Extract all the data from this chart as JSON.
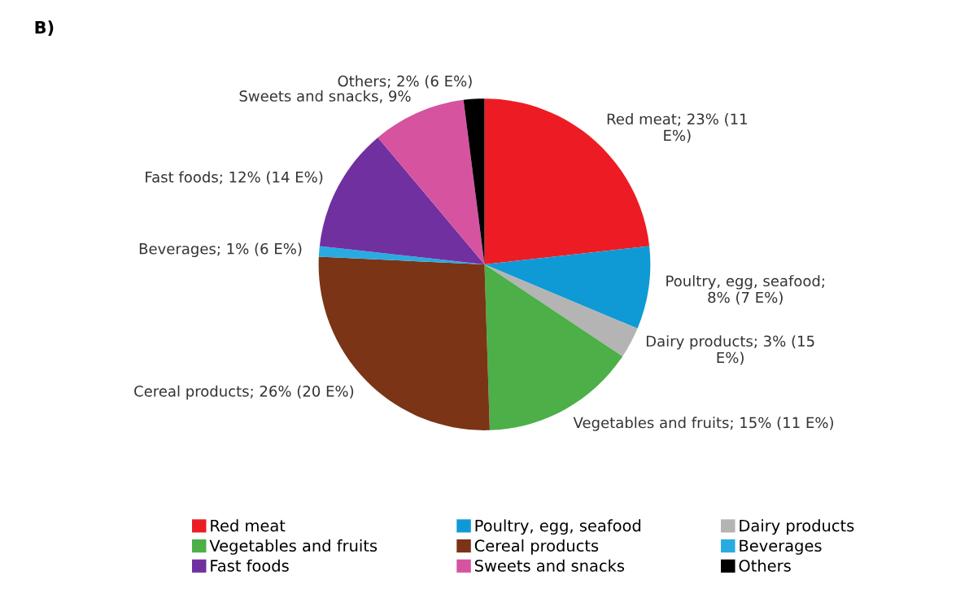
{
  "chart_data": {
    "type": "pie",
    "title": "B)",
    "categories": [
      "Red meat",
      "Poultry, egg, seafood",
      "Dairy products",
      "Vegetables and fruits",
      "Cereal products",
      "Beverages",
      "Fast foods",
      "Sweets and snacks",
      "Others"
    ],
    "values": [
      23,
      8,
      3,
      15,
      26,
      1,
      12,
      9,
      2
    ],
    "colors": [
      "#ed1c24",
      "#0f9ad6",
      "#b4b4b4",
      "#4caf48",
      "#7b3416",
      "#29abe2",
      "#7030a0",
      "#d653a0",
      "#000000"
    ],
    "value_labels": [
      "Red meat; 23% (11\nE%)",
      "Poultry, egg, seafood;\n8% (7 E%)",
      "Dairy products; 3% (15\nE%)",
      "Vegetables and fruits; 15% (11 E%)",
      "Cereal products; 26% (20 E%)",
      "Beverages; 1% (6 E%)",
      "Fast foods; 12% (14 E%)",
      "Sweets and snacks, 9%",
      "Others; 2% (6 E%)"
    ],
    "legend": "bottom"
  }
}
